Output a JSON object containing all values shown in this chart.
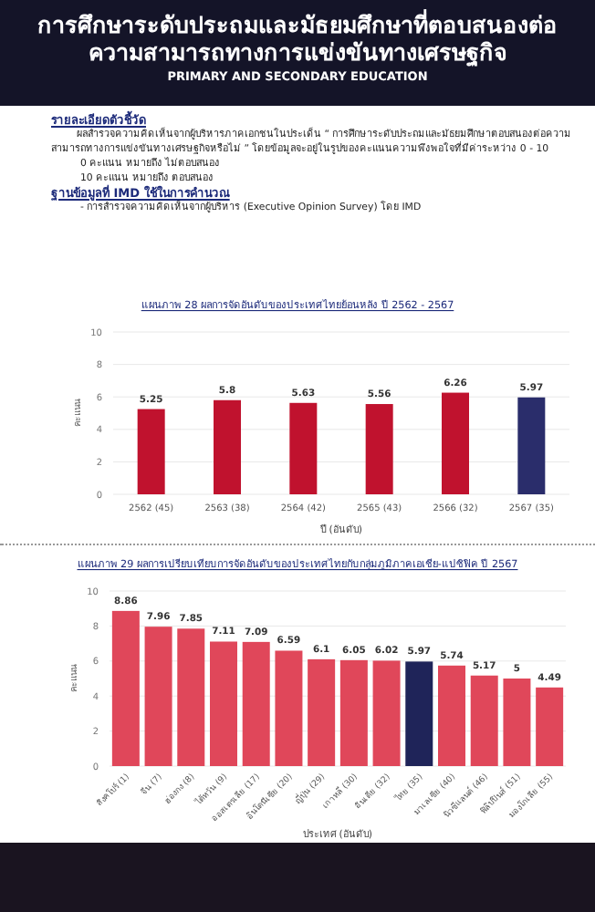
{
  "chart_data": [
    {
      "type": "other",
      "title": "การศึกษาระดับประถมและมัธยมศึกษาที่ตอบสนองต่อความสามารถทางการแข่งขันทางเศรษฐกิจ",
      "subtitle": "PRIMARY AND SECONDARY EDUCATION",
      "annotations": [
        "รายละเอียดตัวชี้วัด",
        "ผลสำรวจความคิดเห็นจากผู้บริหารภาคเอกชนในประเด็น “ การศึกษาระดับประถมและมัธยมศึกษาตอบสนองต่อความสามารถทางการแข่งขันทางเศรษฐกิจหรือไม่ ” โดยข้อมูลจะอยู่ในรูปของคะแนนความพึงพอใจที่มีค่าระหว่าง 0 - 10",
        "0 คะแนน หมายถึง ไม่ตอบสนอง",
        "10 คะแนน หมายถึง ตอบสนอง",
        "ฐานข้อมูลที่ IMD ใช้ในการคำนวณ",
        "- การสำรวจความคิดเห็นจากผู้บริหาร (Executive Opinion Survey) โดย IMD"
      ]
    },
    {
      "type": "bar",
      "title": "แผนภาพ 28 ผลการจัดอันดับของประเทศไทยย้อนหลัง ปี 2562 - 2567",
      "xlabel": "ปี (อันดับ)",
      "ylabel": "คะแนน",
      "categories": [
        "2562 (45)",
        "2563 (38)",
        "2564 (42)",
        "2565 (43)",
        "2566 (32)",
        "2567 (35)"
      ],
      "values": [
        5.25,
        5.8,
        5.63,
        5.56,
        6.26,
        5.97
      ],
      "colors": [
        "#c0122e",
        "#c0122e",
        "#c0122e",
        "#c0122e",
        "#c0122e",
        "#2a2d6b"
      ],
      "ylim": [
        0,
        10
      ],
      "yticks": [
        0,
        2,
        4,
        6,
        8,
        10
      ],
      "grid": "y",
      "data_labels": true
    },
    {
      "type": "bar",
      "title": "แผนภาพ 29 ผลการเปรียบเทียบการจัดอันดับของประเทศไทยกับกลุ่มภูมิภาคเอเชีย-แปซิฟิค ปี 2567",
      "xlabel": "ประเทศ (อันดับ)",
      "ylabel": "คะแนน",
      "categories": [
        "สิงคโปร์ (1)",
        "จีน (7)",
        "ฮ่องกง (8)",
        "ไต้หวัน (9)",
        "ออสเตรเลีย (17)",
        "อินโดนีเซีย (20)",
        "ญี่ปุ่น (29)",
        "เกาหลี (30)",
        "อินเดีย (32)",
        "ไทย (35)",
        "มาเลเซีย (40)",
        "นิวซีแลนด์ (46)",
        "ฟิลิปปินส์ (51)",
        "มองโกเลีย (55)"
      ],
      "values": [
        8.86,
        7.96,
        7.85,
        7.11,
        7.09,
        6.59,
        6.1,
        6.05,
        6.02,
        5.97,
        5.74,
        5.17,
        5,
        4.49
      ],
      "colors": [
        "#e0475a",
        "#e0475a",
        "#e0475a",
        "#e0475a",
        "#e0475a",
        "#e0475a",
        "#e0475a",
        "#e0475a",
        "#e0475a",
        "#1f2459",
        "#e0475a",
        "#e0475a",
        "#e0475a",
        "#e0475a"
      ],
      "ylim": [
        0,
        10
      ],
      "yticks": [
        0,
        2,
        4,
        6,
        8,
        10
      ],
      "grid": "y",
      "data_labels": true
    }
  ]
}
